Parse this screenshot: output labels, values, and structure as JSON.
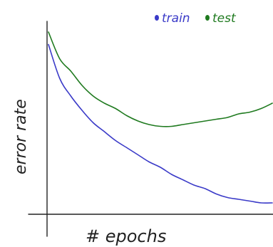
{
  "chart_data": {
    "type": "line",
    "xlabel": "# epochs",
    "ylabel": "error rate",
    "xlim": [
      0,
      100
    ],
    "ylim": [
      0,
      100
    ],
    "grid": false,
    "legend": {
      "placement": "top-right",
      "entries": [
        {
          "label": "train",
          "color": "#3a3ac8"
        },
        {
          "label": "test",
          "color": "#1f7a1f"
        }
      ]
    },
    "x": [
      0,
      5,
      10,
      15,
      20,
      25,
      30,
      35,
      40,
      45,
      50,
      55,
      60,
      65,
      70,
      75,
      80,
      85,
      90,
      95,
      100
    ],
    "series": [
      {
        "name": "train",
        "color": "#3a3ac8",
        "values": [
          91,
          72,
          62,
          54,
          47,
          42,
          37,
          33,
          29,
          25,
          22,
          18,
          15,
          12,
          10,
          7,
          5,
          4,
          3,
          2,
          2
        ]
      },
      {
        "name": "test",
        "color": "#1f7a1f",
        "values": [
          98,
          83,
          76,
          68,
          62,
          58,
          55,
          51,
          48,
          46,
          45,
          45,
          46,
          47,
          48,
          49,
          50,
          52,
          53,
          55,
          58
        ]
      }
    ]
  }
}
